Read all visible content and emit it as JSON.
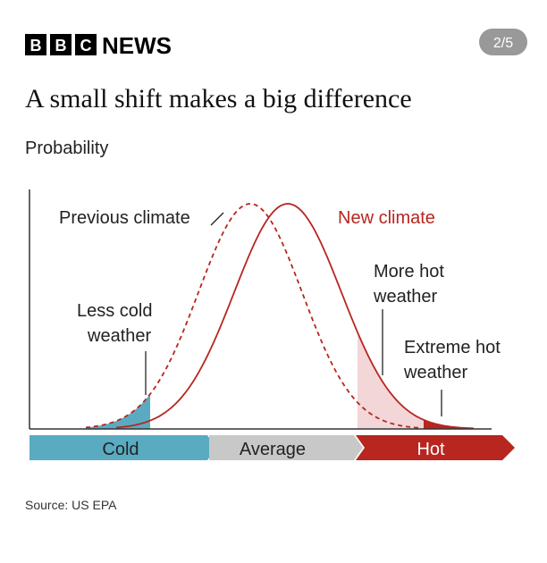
{
  "header": {
    "logo": [
      "B",
      "B",
      "C"
    ],
    "brand": "NEWS",
    "page": "2/5"
  },
  "title": "A small shift makes a big difference",
  "axis_label": "Probability",
  "labels": {
    "previous": "Previous climate",
    "new": "New climate",
    "less_cold": [
      "Less cold",
      "weather"
    ],
    "more_hot": [
      "More hot",
      "weather"
    ],
    "extreme_hot": [
      "Extreme hot",
      "weather"
    ]
  },
  "scale": [
    "Cold",
    "Average",
    "Hot"
  ],
  "source": "Source: US EPA"
}
